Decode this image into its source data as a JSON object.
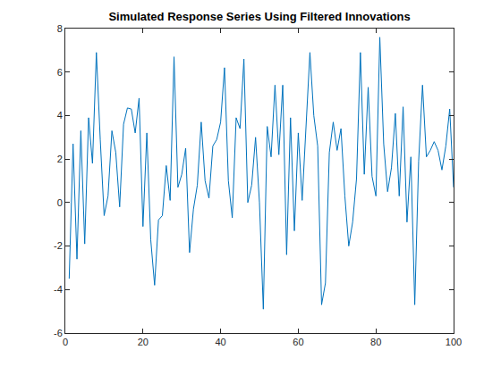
{
  "chart_data": {
    "type": "line",
    "title": "Simulated Response Series Using Filtered Innovations",
    "x": [
      1,
      2,
      3,
      4,
      5,
      6,
      7,
      8,
      9,
      10,
      11,
      12,
      13,
      14,
      15,
      16,
      17,
      18,
      19,
      20,
      21,
      22,
      23,
      24,
      25,
      26,
      27,
      28,
      29,
      30,
      31,
      32,
      33,
      34,
      35,
      36,
      37,
      38,
      39,
      40,
      41,
      42,
      43,
      44,
      45,
      46,
      47,
      48,
      49,
      50,
      51,
      52,
      53,
      54,
      55,
      56,
      57,
      58,
      59,
      60,
      61,
      62,
      63,
      64,
      65,
      66,
      67,
      68,
      69,
      70,
      71,
      72,
      73,
      74,
      75,
      76,
      77,
      78,
      79,
      80,
      81,
      82,
      83,
      84,
      85,
      86,
      87,
      88,
      89,
      90,
      91,
      92,
      93,
      94,
      95,
      96,
      97,
      98,
      99,
      100
    ],
    "values": [
      -3.5,
      2.7,
      -2.6,
      3.3,
      -1.9,
      3.9,
      1.8,
      6.9,
      2.9,
      -0.6,
      0.3,
      3.3,
      2.3,
      -0.2,
      3.6,
      4.35,
      4.3,
      3.2,
      4.8,
      -1.1,
      3.2,
      -1.7,
      -3.8,
      -0.8,
      -0.6,
      1.7,
      0.1,
      6.7,
      0.7,
      1.3,
      2.5,
      -2.3,
      -0.3,
      0.8,
      3.7,
      1.0,
      0.2,
      2.6,
      2.9,
      3.7,
      6.2,
      1.0,
      -0.7,
      3.9,
      3.4,
      6.6,
      0.0,
      0.8,
      3.0,
      0.0,
      -4.9,
      3.5,
      2.1,
      5.4,
      2.2,
      5.4,
      -2.4,
      3.9,
      -1.3,
      3.2,
      0.1,
      3.5,
      6.9,
      4.0,
      2.6,
      -4.7,
      -3.7,
      2.3,
      3.7,
      2.4,
      3.4,
      0.3,
      -2.0,
      -0.9,
      1.1,
      6.9,
      1.3,
      5.3,
      1.2,
      0.3,
      7.6,
      2.7,
      0.5,
      1.6,
      4.1,
      0.3,
      4.4,
      -0.9,
      2.1,
      -4.7,
      1.9,
      5.4,
      2.1,
      2.4,
      2.8,
      2.4,
      1.5,
      2.6,
      4.3,
      0.7
    ],
    "color": "#0072bd",
    "xlim": [
      0,
      100
    ],
    "xticks": [
      0,
      20,
      40,
      60,
      80,
      100
    ],
    "ylim": [
      -6,
      8
    ],
    "yticks": [
      -6,
      -4,
      -2,
      0,
      2,
      4,
      6,
      8
    ],
    "grid": false
  }
}
